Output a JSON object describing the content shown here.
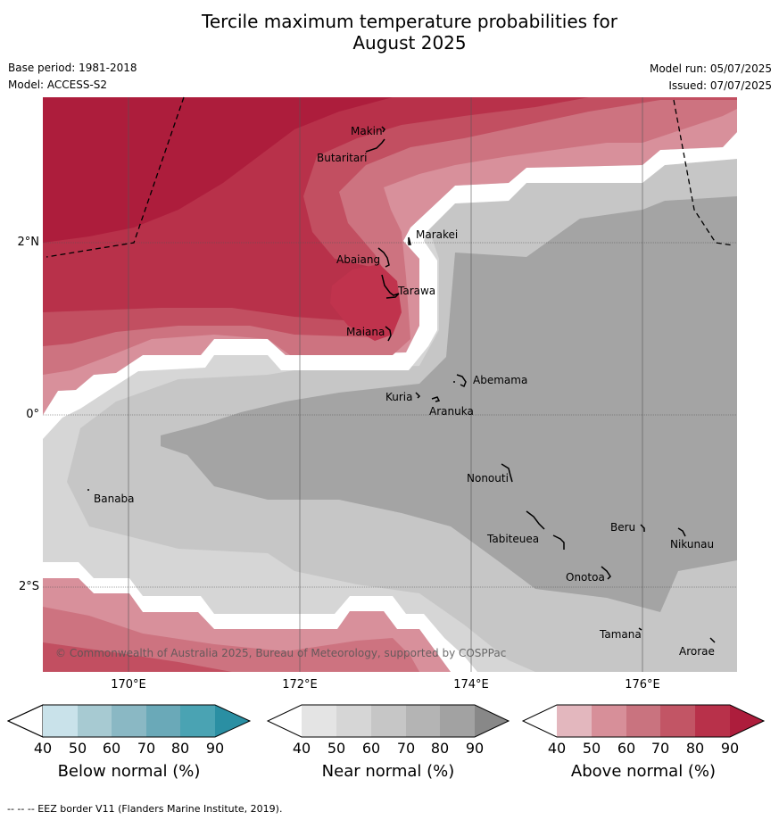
{
  "title_line1": "Tercile maximum temperature probabilities for",
  "title_line2": "August 2025",
  "base_period": "Base period: 1981-2018",
  "model": "Model: ACCESS-S2",
  "model_run": "Model run: 05/07/2025",
  "issued": "Issued: 07/07/2025",
  "copyright": "© Commonwealth of Australia 2025, Bureau of Meteorology, supported by COSPPac",
  "lon_labels": [
    "170°E",
    "172°E",
    "174°E",
    "176°E"
  ],
  "lat_labels": [
    "2°N",
    "0°",
    "2°S"
  ],
  "places": {
    "makin": "Makin",
    "butaritari": "Butaritari",
    "marakei": "Marakei",
    "abaiang": "Abaiang",
    "tarawa": "Tarawa",
    "maiana": "Maiana",
    "abemama": "Abemama",
    "kuria": "Kuria",
    "aranuka": "Aranuka",
    "banaba": "Banaba",
    "nonouti": "Nonouti",
    "tabiteuea": "Tabiteuea",
    "beru": "Beru",
    "nikunau": "Nikunau",
    "onotoa": "Onotoa",
    "tamana": "Tamana",
    "arorae": "Arorae"
  },
  "colorbars": [
    {
      "title": "Below normal (%)",
      "ticks": [
        "40",
        "50",
        "60",
        "70",
        "80",
        "90"
      ],
      "colors": [
        "#ffffff",
        "#c9e2ea",
        "#a7cad2",
        "#8ab8c4",
        "#6aa9b8",
        "#4aa3b3",
        "#2a8fa3"
      ]
    },
    {
      "title": "Near normal (%)",
      "ticks": [
        "40",
        "50",
        "60",
        "70",
        "80",
        "90"
      ],
      "colors": [
        "#ffffff",
        "#e4e4e4",
        "#d6d6d6",
        "#c6c6c6",
        "#b4b4b4",
        "#a2a2a2",
        "#888888"
      ]
    },
    {
      "title": "Above normal (%)",
      "ticks": [
        "40",
        "50",
        "60",
        "70",
        "80",
        "90"
      ],
      "colors": [
        "#ffffff",
        "#e3b7be",
        "#d78f99",
        "#c9737f",
        "#c25565",
        "#b8314a",
        "#ad1d3c"
      ]
    }
  ],
  "footnote": "--  --  -- EEZ border V11 (Flanders Marine Institute, 2019)."
}
